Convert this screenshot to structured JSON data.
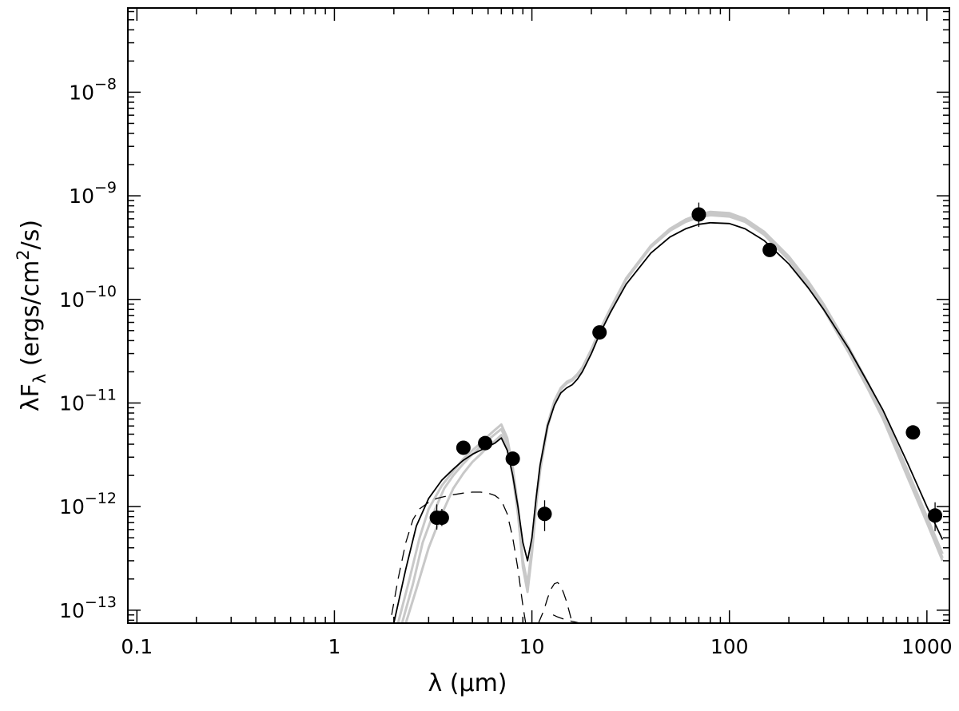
{
  "chart_data": {
    "type": "scatter",
    "xlabel": "λ (μm)",
    "ylabel": "λF",
    "ylabel_subscript": "λ",
    "ylabel_units_prefix": " (ergs/cm",
    "ylabel_units_exp": "2",
    "ylabel_units_suffix": "/s)",
    "x_scale": "log",
    "y_scale": "log",
    "xlim": [
      0.09,
      1300
    ],
    "ylim": [
      7.5e-14,
      6.5e-08
    ],
    "grid": false,
    "x_ticks": [
      {
        "value": 0.1,
        "label": "0.1"
      },
      {
        "value": 1,
        "label": "1"
      },
      {
        "value": 10,
        "label": "10"
      },
      {
        "value": 100,
        "label": "100"
      },
      {
        "value": 1000,
        "label": "1000"
      }
    ],
    "y_ticks": [
      {
        "value": 1e-13,
        "base": "10",
        "exp": "−13"
      },
      {
        "value": 1e-12,
        "base": "10",
        "exp": "−12"
      },
      {
        "value": 1e-11,
        "base": "10",
        "exp": "−11"
      },
      {
        "value": 1e-10,
        "base": "10",
        "exp": "−10"
      },
      {
        "value": 1e-09,
        "base": "10",
        "exp": "−9"
      },
      {
        "value": 1e-08,
        "base": "10",
        "exp": "−8"
      }
    ],
    "points": [
      {
        "x": 3.3,
        "y": 7.8e-13,
        "err_lo": 6e-13,
        "err_hi": 1.05e-12
      },
      {
        "x": 3.5,
        "y": 7.8e-13,
        "err_lo": 6.5e-13,
        "err_hi": 9.5e-13
      },
      {
        "x": 4.5,
        "y": 3.7e-12,
        "err_lo": 3.4e-12,
        "err_hi": 4e-12
      },
      {
        "x": 5.8,
        "y": 4.1e-12,
        "err_lo": 3.8e-12,
        "err_hi": 4.4e-12
      },
      {
        "x": 8.0,
        "y": 2.9e-12,
        "err_lo": 2.6e-12,
        "err_hi": 3.2e-12
      },
      {
        "x": 11.6,
        "y": 8.5e-13,
        "err_lo": 5.8e-13,
        "err_hi": 1.15e-12
      },
      {
        "x": 22,
        "y": 4.8e-11,
        "err_lo": 4.4e-11,
        "err_hi": 5.2e-11
      },
      {
        "x": 70,
        "y": 6.6e-10,
        "err_lo": 5e-10,
        "err_hi": 8.6e-10
      },
      {
        "x": 160,
        "y": 3e-10,
        "err_lo": 2.75e-10,
        "err_hi": 3.25e-10
      },
      {
        "x": 850,
        "y": 5.2e-12,
        "err_lo": 4.8e-12,
        "err_hi": 5.6e-12
      },
      {
        "x": 1100,
        "y": 8.2e-13,
        "err_lo": 5.8e-13,
        "err_hi": 1.1e-12
      }
    ],
    "series": [
      {
        "style": "best-fit",
        "color": "#000000",
        "x": [
          2.0,
          2.3,
          2.6,
          3.0,
          3.5,
          4.0,
          4.5,
          5.0,
          5.5,
          6.0,
          6.5,
          7.0,
          7.5,
          8.0,
          8.5,
          9.0,
          9.5,
          10.0,
          10.5,
          11.0,
          12.0,
          13.0,
          14.0,
          15.0,
          16.0,
          17.0,
          18.0,
          20.0,
          22.0,
          25.0,
          30.0,
          40.0,
          50.0,
          60.0,
          70.0,
          80.0,
          100.0,
          120.0,
          150.0,
          200.0,
          250.0,
          300.0,
          400.0,
          500.0,
          600.0,
          800.0,
          1000.0,
          1200.0
        ],
        "y": [
          7.5e-14,
          2.5e-13,
          6.5e-13,
          1.2e-12,
          1.8e-12,
          2.3e-12,
          2.8e-12,
          3.2e-12,
          3.5e-12,
          3.8e-12,
          4.1e-12,
          4.6e-12,
          3.5e-12,
          2e-12,
          1e-12,
          4.5e-13,
          3e-13,
          5e-13,
          1.2e-12,
          2.5e-12,
          6e-12,
          9.5e-12,
          1.25e-11,
          1.4e-11,
          1.5e-11,
          1.7e-11,
          2e-11,
          3e-11,
          4.6e-11,
          7.5e-11,
          1.4e-10,
          2.8e-10,
          4e-10,
          4.8e-10,
          5.3e-10,
          5.5e-10,
          5.4e-10,
          4.8e-10,
          3.7e-10,
          2.2e-10,
          1.3e-10,
          8e-11,
          3.4e-11,
          1.6e-11,
          8.5e-12,
          2.6e-12,
          1e-12,
          4.8e-13
        ]
      },
      {
        "style": "other-models",
        "color": "#c8c8c8",
        "x": [
          2.1,
          2.4,
          2.7,
          3.0,
          3.5,
          4.0,
          4.5,
          5.0,
          5.5,
          6.0,
          6.5,
          7.0,
          7.5,
          8.0,
          8.5,
          9.0,
          9.5,
          10.0,
          10.5,
          11.0,
          12.0,
          13.0,
          14.0,
          15.0,
          16.0,
          17.0,
          18.0,
          20.0,
          22.0,
          25.0,
          30.0,
          40.0,
          50.0,
          60.0,
          70.0,
          80.0,
          100.0,
          120.0,
          150.0,
          200.0,
          250.0,
          300.0,
          400.0,
          500.0,
          600.0,
          800.0,
          1000.0,
          1200.0
        ],
        "y": [
          7.5e-14,
          2e-13,
          5e-13,
          9.5e-13,
          1.6e-12,
          2.2e-12,
          2.9e-12,
          3.5e-12,
          4.1e-12,
          4.8e-12,
          5.5e-12,
          6.2e-12,
          4.6e-12,
          2.4e-12,
          1e-12,
          3e-13,
          1.8e-13,
          4e-13,
          1.1e-12,
          2.4e-12,
          6.2e-12,
          1.05e-11,
          1.4e-11,
          1.6e-11,
          1.7e-11,
          1.9e-11,
          2.2e-11,
          3.3e-11,
          5e-11,
          8.2e-11,
          1.6e-10,
          3.3e-10,
          4.8e-10,
          5.9e-10,
          6.6e-10,
          7e-10,
          6.8e-10,
          6e-10,
          4.5e-10,
          2.6e-10,
          1.5e-10,
          9e-11,
          3.5e-11,
          1.6e-11,
          8e-12,
          2.2e-12,
          8e-13,
          3.5e-13
        ]
      },
      {
        "style": "other-models",
        "color": "#c8c8c8",
        "x": [
          2.2,
          2.5,
          2.8,
          3.2,
          3.6,
          4.0,
          4.5,
          5.0,
          5.5,
          6.0,
          6.5,
          7.0,
          7.5,
          8.0,
          8.5,
          9.0,
          9.5,
          10.0,
          10.5,
          11.0,
          12.0,
          13.0,
          14.0,
          15.0,
          16.0,
          17.0,
          18.0,
          20.0,
          22.0,
          25.0,
          30.0,
          40.0,
          50.0,
          60.0,
          70.0,
          80.0,
          100.0,
          120.0,
          150.0,
          200.0,
          250.0,
          300.0,
          400.0,
          500.0,
          600.0,
          800.0,
          1000.0,
          1200.0
        ],
        "y": [
          7.5e-14,
          1.8e-13,
          4.5e-13,
          9e-13,
          1.5e-12,
          2e-12,
          2.6e-12,
          3.2e-12,
          3.8e-12,
          4.4e-12,
          5e-12,
          5.6e-12,
          4.2e-12,
          2.2e-12,
          9e-13,
          2.6e-13,
          1.5e-13,
          3.5e-13,
          1e-12,
          2.2e-12,
          5.8e-12,
          1e-11,
          1.35e-11,
          1.55e-11,
          1.65e-11,
          1.85e-11,
          2.1e-11,
          3.2e-11,
          4.9e-11,
          8e-11,
          1.55e-10,
          3.2e-10,
          4.6e-10,
          5.6e-10,
          6.2e-10,
          6.5e-10,
          6.3e-10,
          5.6e-10,
          4.2e-10,
          2.4e-10,
          1.35e-10,
          8e-11,
          3.1e-11,
          1.4e-11,
          7e-12,
          1.9e-12,
          7e-13,
          3e-13
        ]
      },
      {
        "style": "other-models",
        "color": "#c8c8c8",
        "x": [
          2.3,
          2.6,
          3.0,
          3.5,
          4.0,
          4.5,
          5.0,
          5.5,
          6.0,
          6.5,
          7.0,
          7.5,
          8.0,
          8.5,
          9.0,
          9.5,
          10.0,
          10.5,
          11.0,
          12.0,
          13.0,
          14.0,
          15.0,
          16.0,
          17.0,
          18.0,
          20.0,
          22.0,
          25.0,
          30.0,
          40.0,
          50.0,
          60.0,
          70.0,
          80.0,
          100.0,
          120.0,
          150.0,
          200.0,
          250.0,
          300.0,
          400.0,
          500.0,
          600.0,
          800.0,
          1000.0,
          1200.0
        ],
        "y": [
          7.5e-14,
          1.6e-13,
          4e-13,
          8.5e-13,
          1.5e-12,
          2.1e-12,
          2.7e-12,
          3.2e-12,
          3.8e-12,
          4.3e-12,
          4.9e-12,
          3.7e-12,
          2e-12,
          8.5e-13,
          2.8e-13,
          1.6e-13,
          3.8e-13,
          1.05e-12,
          2.3e-12,
          6e-12,
          1.02e-11,
          1.38e-11,
          1.58e-11,
          1.68e-11,
          1.88e-11,
          2.15e-11,
          3.25e-11,
          4.95e-11,
          8.1e-11,
          1.58e-10,
          3.25e-10,
          4.7e-10,
          5.75e-10,
          6.4e-10,
          6.75e-10,
          6.55e-10,
          5.8e-10,
          4.35e-10,
          2.5e-10,
          1.42e-10,
          8.5e-11,
          3.3e-11,
          1.5e-11,
          7.5e-12,
          2e-12,
          7.5e-13,
          3.2e-13
        ]
      },
      {
        "style": "stellar-photosphere",
        "color": "#000000",
        "x": [
          1.95,
          2.1,
          2.3,
          2.5,
          2.7,
          3.0,
          3.3,
          3.6,
          4.0,
          4.5,
          5.0,
          5.5,
          6.0,
          6.5,
          7.0,
          7.5,
          8.0,
          8.5,
          9.0,
          9.3
        ],
        "y": [
          9e-14,
          2e-13,
          4.5e-13,
          7.5e-13,
          9.5e-13,
          1.1e-12,
          1.2e-12,
          1.25e-12,
          1.3e-12,
          1.35e-12,
          1.38e-12,
          1.38e-12,
          1.35e-12,
          1.28e-12,
          1.15e-12,
          8.5e-13,
          5e-13,
          2.5e-13,
          1.1e-13,
          7.5e-14
        ]
      },
      {
        "style": "stellar-photosphere",
        "color": "#000000",
        "x": [
          10.8,
          11.5,
          12.0,
          12.5,
          13.0,
          13.5,
          14.0,
          14.5,
          15.0,
          15.5,
          16.0
        ],
        "y": [
          7.5e-14,
          1e-13,
          1.3e-13,
          1.6e-13,
          1.8e-13,
          1.85e-13,
          1.7e-13,
          1.45e-13,
          1.2e-13,
          9.5e-14,
          7.5e-14
        ]
      },
      {
        "style": "stellar-photosphere",
        "color": "#000000",
        "x": [
          12.8,
          13.5,
          14.5,
          15.5,
          16.5,
          17.5
        ],
        "y": [
          9e-14,
          8.6e-14,
          8.2e-14,
          7.9e-14,
          7.7e-14,
          7.5e-14
        ]
      }
    ]
  }
}
